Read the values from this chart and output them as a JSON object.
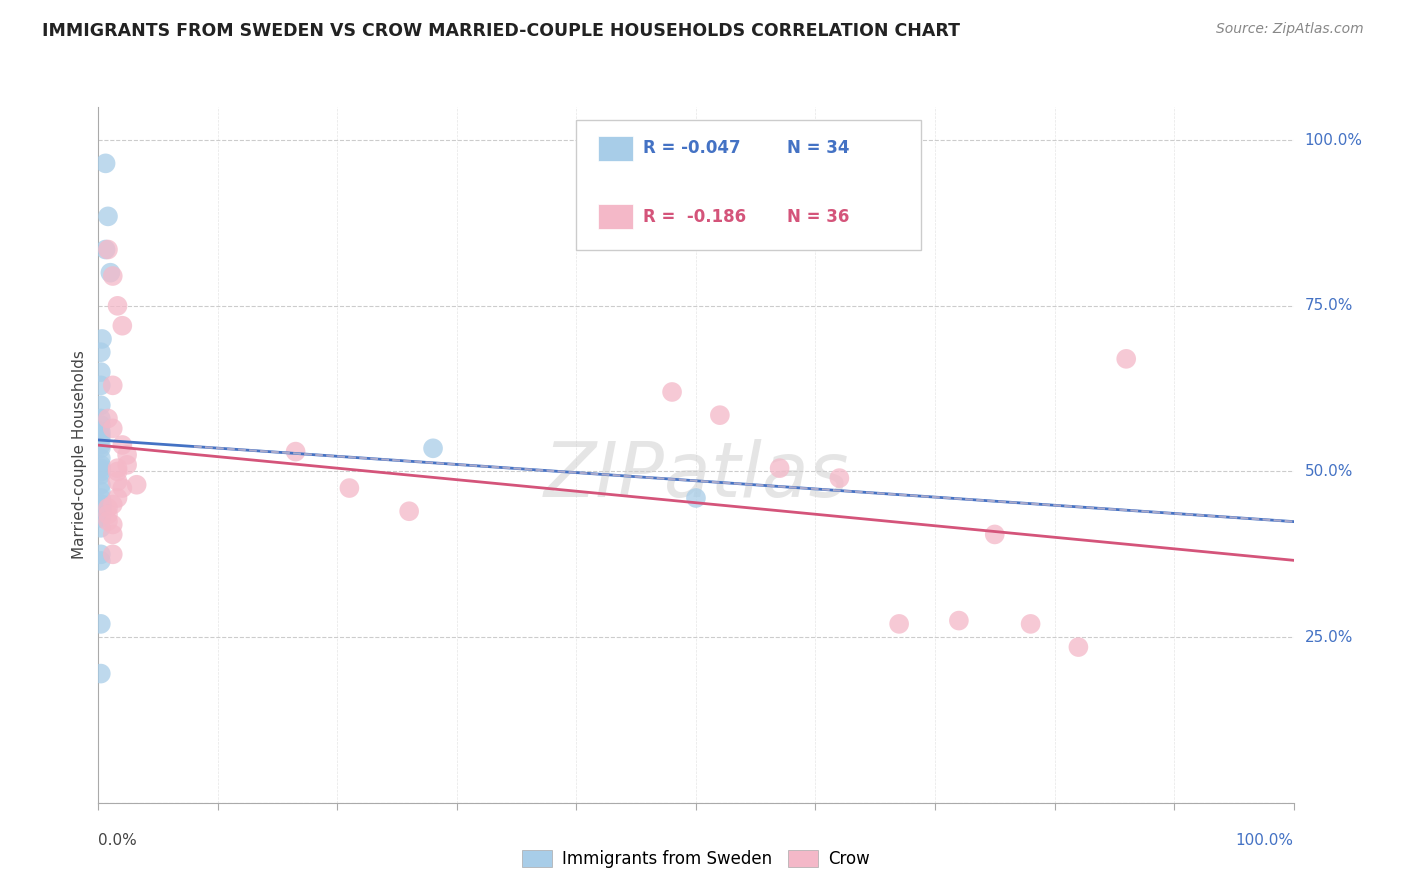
{
  "title": "IMMIGRANTS FROM SWEDEN VS CROW MARRIED-COUPLE HOUSEHOLDS CORRELATION CHART",
  "source": "Source: ZipAtlas.com",
  "ylabel": "Married-couple Households",
  "legend_r1": "-0.047",
  "legend_n1": "34",
  "legend_r2": "-0.186",
  "legend_n2": "36",
  "blue_color": "#a8cde8",
  "pink_color": "#f4b8c8",
  "blue_line_color": "#4472c4",
  "pink_line_color": "#d4547a",
  "dash_color": "#aaaacc",
  "watermark": "ZIPatlas",
  "background_color": "#ffffff",
  "grid_color": "#cccccc",
  "ytick_vals": [
    0.0,
    0.25,
    0.5,
    0.75,
    1.0
  ],
  "ytick_labels": [
    "",
    "25.0%",
    "50.0%",
    "75.0%",
    "100.0%"
  ],
  "sweden_x": [
    0.006,
    0.008,
    0.006,
    0.01,
    0.003,
    0.002,
    0.002,
    0.002,
    0.002,
    0.002,
    0.002,
    0.002,
    0.002,
    0.002,
    0.002,
    0.002,
    0.002,
    0.002,
    0.002,
    0.002,
    0.002,
    0.002,
    0.002,
    0.002,
    0.003,
    0.003,
    0.002,
    0.002,
    0.002,
    0.002,
    0.002,
    0.002,
    0.28,
    0.5
  ],
  "sweden_y": [
    0.965,
    0.885,
    0.835,
    0.8,
    0.7,
    0.68,
    0.65,
    0.63,
    0.6,
    0.58,
    0.57,
    0.56,
    0.555,
    0.55,
    0.54,
    0.535,
    0.52,
    0.51,
    0.505,
    0.5,
    0.495,
    0.48,
    0.47,
    0.46,
    0.45,
    0.44,
    0.43,
    0.415,
    0.375,
    0.365,
    0.27,
    0.195,
    0.535,
    0.46
  ],
  "crow_x": [
    0.008,
    0.012,
    0.016,
    0.02,
    0.012,
    0.008,
    0.012,
    0.02,
    0.024,
    0.024,
    0.016,
    0.016,
    0.016,
    0.032,
    0.02,
    0.016,
    0.012,
    0.008,
    0.008,
    0.008,
    0.012,
    0.012,
    0.012,
    0.165,
    0.21,
    0.26,
    0.48,
    0.52,
    0.57,
    0.62,
    0.67,
    0.72,
    0.75,
    0.78,
    0.82,
    0.86
  ],
  "crow_y": [
    0.835,
    0.795,
    0.75,
    0.72,
    0.63,
    0.58,
    0.565,
    0.54,
    0.525,
    0.51,
    0.505,
    0.5,
    0.485,
    0.48,
    0.475,
    0.46,
    0.45,
    0.445,
    0.435,
    0.425,
    0.42,
    0.405,
    0.375,
    0.53,
    0.475,
    0.44,
    0.62,
    0.585,
    0.505,
    0.49,
    0.27,
    0.275,
    0.405,
    0.27,
    0.235,
    0.67
  ]
}
